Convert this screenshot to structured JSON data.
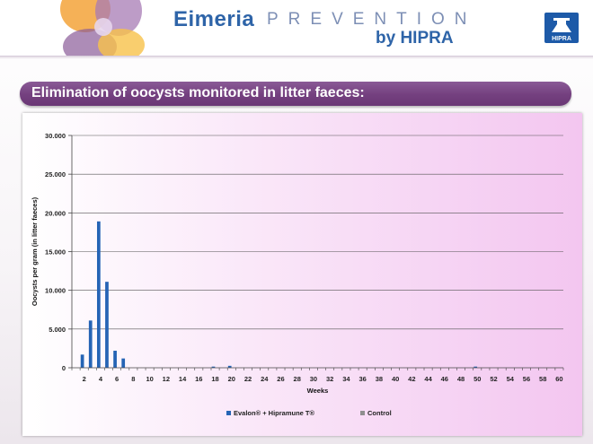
{
  "header": {
    "brand": "Eimeria",
    "brand_sub": "PREVENTION",
    "brand_by": "by HIPRA",
    "badge_text": "HIPRA"
  },
  "slide_title": "Elimination of oocysts monitored in litter faeces:",
  "colors": {
    "accent_purple": "#74407f",
    "brand_blue": "#2e64a8",
    "series_evalon": "#2564b5",
    "series_control": "#8f8f8f"
  },
  "chart_data": {
    "type": "bar",
    "xlabel": "Weeks",
    "ylabel": "Oocysts per gram (in litter faeces)",
    "ylim": [
      0,
      30000
    ],
    "yticks": [
      0,
      5000,
      10000,
      15000,
      20000,
      25000,
      30000
    ],
    "ytick_labels": [
      "0",
      "5.000",
      "10.000",
      "15.000",
      "20.000",
      "25.000",
      "30.000"
    ],
    "categories": [
      1,
      2,
      3,
      4,
      5,
      6,
      7,
      8,
      9,
      10,
      11,
      12,
      13,
      14,
      15,
      16,
      17,
      18,
      19,
      20,
      21,
      22,
      23,
      24,
      25,
      26,
      27,
      28,
      29,
      30,
      31,
      32,
      33,
      34,
      35,
      36,
      37,
      38,
      39,
      40,
      41,
      42,
      43,
      44,
      45,
      46,
      47,
      48,
      49,
      50,
      51,
      52,
      53,
      54,
      55,
      56,
      57,
      58,
      59,
      60
    ],
    "x_tick_labels": [
      "2",
      "4",
      "6",
      "8",
      "10",
      "12",
      "14",
      "16",
      "18",
      "20",
      "22",
      "24",
      "26",
      "28",
      "30",
      "32",
      "34",
      "36",
      "38",
      "40",
      "42",
      "44",
      "46",
      "48",
      "50",
      "52",
      "54",
      "56",
      "58",
      "60"
    ],
    "grid": true,
    "legend_position": "bottom",
    "series": [
      {
        "name": "Evalon® + Hipramune T®",
        "values": [
          0,
          1700,
          6100,
          18900,
          11100,
          2200,
          1200,
          0,
          0,
          0,
          0,
          0,
          0,
          0,
          0,
          0,
          0,
          150,
          0,
          250,
          0,
          0,
          0,
          0,
          0,
          0,
          0,
          0,
          0,
          0,
          0,
          0,
          0,
          0,
          0,
          0,
          0,
          0,
          0,
          0,
          0,
          0,
          0,
          0,
          0,
          0,
          0,
          0,
          0,
          150,
          0,
          0,
          0,
          0,
          0,
          0,
          0,
          0,
          0,
          0
        ]
      },
      {
        "name": "Control",
        "values": [
          0,
          0,
          0,
          0,
          0,
          0,
          0,
          0,
          0,
          0,
          0,
          0,
          0,
          0,
          0,
          0,
          0,
          0,
          0,
          0,
          0,
          0,
          0,
          0,
          0,
          0,
          0,
          0,
          0,
          0,
          0,
          0,
          0,
          0,
          0,
          0,
          0,
          0,
          0,
          0,
          0,
          0,
          0,
          0,
          0,
          0,
          0,
          0,
          0,
          0,
          0,
          0,
          0,
          0,
          0,
          0,
          0,
          0,
          0,
          0
        ]
      }
    ]
  }
}
